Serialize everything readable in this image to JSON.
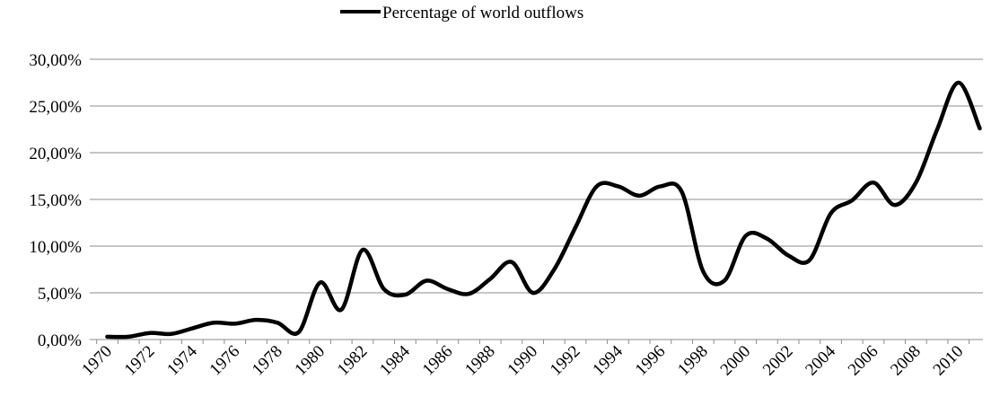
{
  "chart_data": {
    "type": "line",
    "title": "",
    "xlabel": "",
    "ylabel": "",
    "x": [
      1970,
      1971,
      1972,
      1973,
      1974,
      1975,
      1976,
      1977,
      1978,
      1979,
      1980,
      1981,
      1982,
      1983,
      1984,
      1985,
      1986,
      1987,
      1988,
      1989,
      1990,
      1991,
      1992,
      1993,
      1994,
      1995,
      1996,
      1997,
      1998,
      1999,
      2000,
      2001,
      2002,
      2003,
      2004,
      2005,
      2006,
      2007,
      2008,
      2009,
      2010,
      2011
    ],
    "x_tick_labels": [
      "1970",
      "1972",
      "1974",
      "1976",
      "1978",
      "1980",
      "1982",
      "1984",
      "1986",
      "1988",
      "1990",
      "1992",
      "1994",
      "1996",
      "1998",
      "2000",
      "2002",
      "2004",
      "2006",
      "2008",
      "2010"
    ],
    "y_tick_labels": [
      "0,00%",
      "5,00%",
      "10,00%",
      "15,00%",
      "20,00%",
      "25,00%",
      "30,00%"
    ],
    "y_ticks": [
      0,
      5,
      10,
      15,
      20,
      25,
      30
    ],
    "ylim": [
      0,
      30
    ],
    "grid": "horizontal",
    "legend_position": "top-center",
    "series": [
      {
        "name": "Percentage of world outflows",
        "color": "#000000",
        "values": [
          0.3,
          0.3,
          0.7,
          0.6,
          1.2,
          1.8,
          1.7,
          2.1,
          1.8,
          0.8,
          6.1,
          3.2,
          9.6,
          5.4,
          4.8,
          6.3,
          5.4,
          4.9,
          6.5,
          8.3,
          5.0,
          7.5,
          12.0,
          16.4,
          16.4,
          15.4,
          16.4,
          15.8,
          7.3,
          6.3,
          11.1,
          10.8,
          9.0,
          8.5,
          13.5,
          14.9,
          16.8,
          14.4,
          16.8,
          22.5,
          27.5,
          22.6
        ]
      }
    ]
  }
}
